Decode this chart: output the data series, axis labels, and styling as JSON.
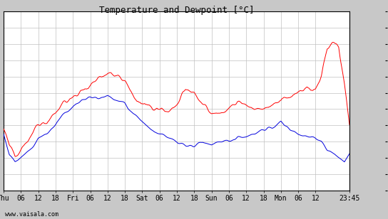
{
  "title": "Temperature and Dewpoint [°C]",
  "x_tick_labels": [
    "Thu",
    "06",
    "12",
    "18",
    "Fri",
    "06",
    "12",
    "18",
    "Sat",
    "06",
    "12",
    "18",
    "Sun",
    "06",
    "12",
    "18",
    "Mon",
    "06",
    "12",
    "23:45"
  ],
  "x_tick_pos": [
    0,
    6,
    12,
    18,
    24,
    30,
    36,
    42,
    48,
    54,
    60,
    66,
    72,
    78,
    84,
    90,
    96,
    102,
    108,
    119.75
  ],
  "xlim": [
    0,
    119.75
  ],
  "ylim": [
    -8,
    14
  ],
  "yticks": [
    -8,
    -6,
    -4,
    -2,
    0,
    2,
    4,
    6,
    8,
    10,
    12,
    14
  ],
  "bg_color": "#c8c8c8",
  "plot_bg_color": "#ffffff",
  "grid_color": "#c0c0c0",
  "temp_color": "#ff0000",
  "dew_color": "#0000dd",
  "watermark": "www.vaisala.com",
  "line_width": 0.7,
  "title_fontsize": 9,
  "tick_fontsize": 7,
  "watermark_fontsize": 6,
  "temp_ctrl_t": [
    0,
    2,
    4,
    6,
    9,
    12,
    15,
    18,
    20,
    24,
    27,
    30,
    33,
    36,
    39,
    42,
    45,
    48,
    51,
    54,
    57,
    60,
    63,
    66,
    69,
    72,
    75,
    78,
    81,
    84,
    87,
    90,
    93,
    96,
    99,
    102,
    105,
    108,
    110,
    112,
    114,
    116,
    118,
    119.75
  ],
  "temp_ctrl_v": [
    -0.5,
    -2.5,
    -3.5,
    -3,
    -1.5,
    0,
    0.5,
    1.5,
    2.5,
    3.5,
    4.2,
    5,
    6,
    6.5,
    6,
    5.5,
    3.5,
    2.5,
    2.2,
    2,
    1.8,
    2.5,
    4.5,
    4,
    2.5,
    1.5,
    1.5,
    2,
    3,
    2.5,
    2,
    2,
    2.5,
    3,
    3.5,
    4,
    4.5,
    4.5,
    6,
    9.5,
    10,
    9.8,
    5,
    0.2
  ],
  "dew_ctrl_t": [
    0,
    2,
    4,
    6,
    9,
    12,
    15,
    18,
    20,
    24,
    27,
    30,
    33,
    36,
    39,
    42,
    45,
    48,
    51,
    54,
    57,
    60,
    63,
    66,
    69,
    72,
    75,
    78,
    81,
    84,
    87,
    90,
    93,
    96,
    99,
    102,
    105,
    108,
    110,
    112,
    114,
    116,
    118,
    119.75
  ],
  "dew_ctrl_v": [
    -1,
    -3.5,
    -4.5,
    -4,
    -3,
    -1.5,
    -1,
    0,
    1,
    2.5,
    3.2,
    3.5,
    3.5,
    3.5,
    3,
    2.5,
    1.5,
    0.5,
    -0.5,
    -1,
    -1.5,
    -2,
    -2.5,
    -2.5,
    -2,
    -2.5,
    -2,
    -2,
    -1.5,
    -1.5,
    -1,
    -0.5,
    -0.3,
    0.5,
    -0.5,
    -1,
    -1.5,
    -1.5,
    -2,
    -3,
    -3.5,
    -4,
    -4.5,
    -3.5
  ]
}
